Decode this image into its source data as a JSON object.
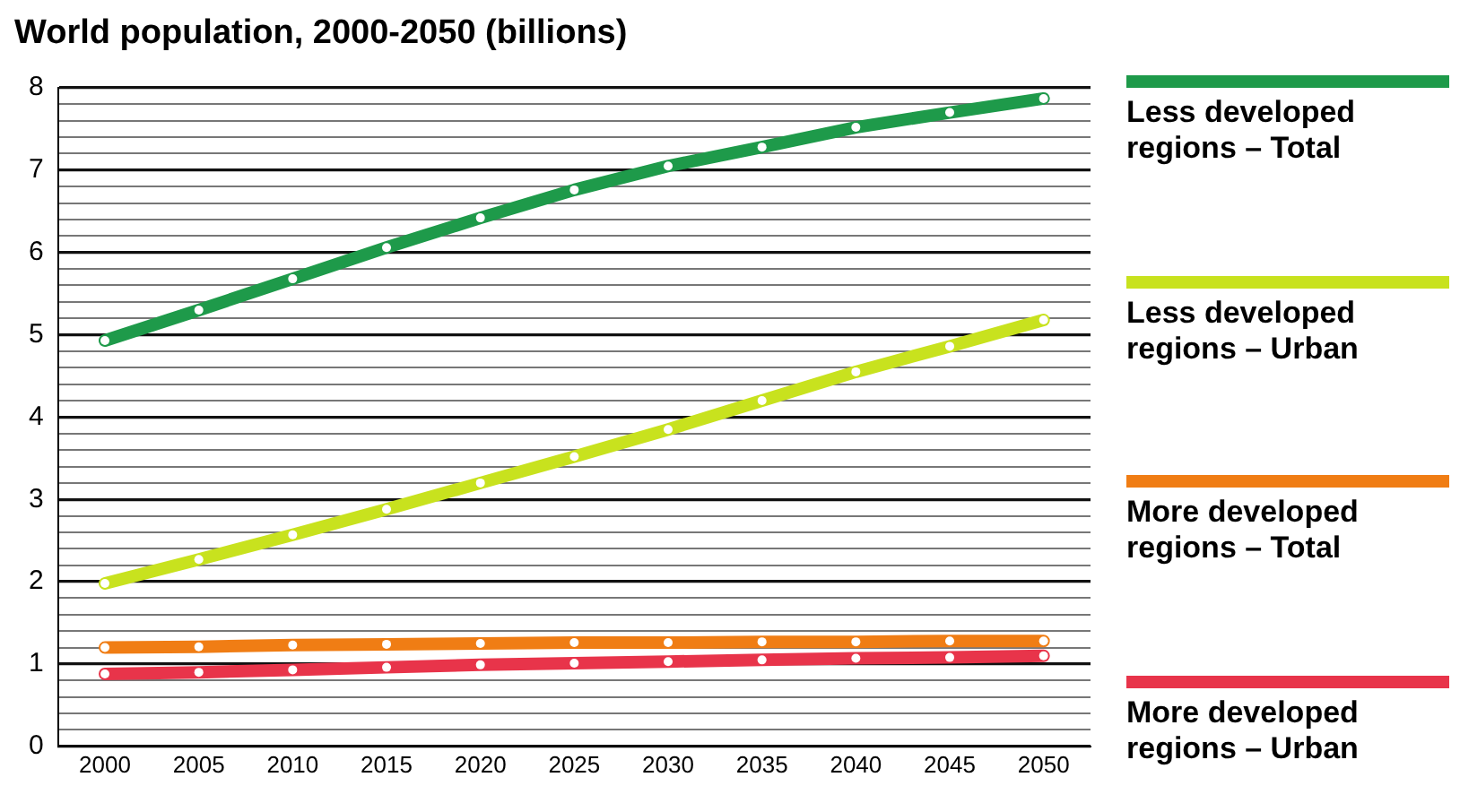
{
  "chart_data": {
    "type": "line",
    "title": "World population, 2000-2050 (billions)",
    "categories": [
      "2000",
      "2005",
      "2010",
      "2015",
      "2020",
      "2025",
      "2030",
      "2035",
      "2040",
      "2045",
      "2050"
    ],
    "series": [
      {
        "name": "Less developed regions – Total",
        "color": "#1e9a4a",
        "values": [
          4.93,
          5.3,
          5.68,
          6.06,
          6.42,
          6.76,
          7.05,
          7.28,
          7.52,
          7.7,
          7.87
        ]
      },
      {
        "name": "Less developed regions – Urban",
        "color": "#c8e21e",
        "values": [
          1.98,
          2.27,
          2.57,
          2.88,
          3.2,
          3.52,
          3.85,
          4.2,
          4.55,
          4.86,
          5.18
        ]
      },
      {
        "name": "More developed regions – Total",
        "color": "#f07d14",
        "values": [
          1.2,
          1.21,
          1.23,
          1.24,
          1.25,
          1.26,
          1.26,
          1.27,
          1.27,
          1.28,
          1.28
        ]
      },
      {
        "name": "More developed regions – Urban",
        "color": "#e8344a",
        "values": [
          0.88,
          0.9,
          0.93,
          0.96,
          0.99,
          1.01,
          1.03,
          1.05,
          1.07,
          1.08,
          1.1
        ]
      }
    ],
    "ylim": [
      0,
      8
    ],
    "yticks": [
      0,
      {
        "value": 0.2,
        "label": null
      },
      {
        "value": 0.4,
        "label": null
      },
      {
        "value": 0.6,
        "label": null
      },
      {
        "value": 0.8,
        "label": null
      },
      1,
      {
        "value": 1.2,
        "label": null
      },
      {
        "value": 1.4,
        "label": null
      },
      {
        "value": 1.6,
        "label": null
      },
      {
        "value": 1.8,
        "label": null
      },
      2,
      {
        "value": 2.2,
        "label": null
      },
      {
        "value": 2.4,
        "label": null
      },
      {
        "value": 2.6,
        "label": null
      },
      {
        "value": 2.8,
        "label": null
      },
      3,
      {
        "value": 3.2,
        "label": null
      },
      {
        "value": 3.4,
        "label": null
      },
      {
        "value": 3.6,
        "label": null
      },
      {
        "value": 3.8,
        "label": null
      },
      4,
      {
        "value": 4.2,
        "label": null
      },
      {
        "value": 4.4,
        "label": null
      },
      {
        "value": 4.6,
        "label": null
      },
      {
        "value": 4.8,
        "label": null
      },
      5,
      {
        "value": 5.2,
        "label": null
      },
      {
        "value": 5.4,
        "label": null
      },
      {
        "value": 5.6,
        "label": null
      },
      {
        "value": 5.8,
        "label": null
      },
      6,
      {
        "value": 6.2,
        "label": null
      },
      {
        "value": 6.4,
        "label": null
      },
      {
        "value": 6.6,
        "label": null
      },
      {
        "value": 6.8,
        "label": null
      },
      7,
      {
        "value": 7.2,
        "label": null
      },
      {
        "value": 7.4,
        "label": null
      },
      {
        "value": 7.6,
        "label": null
      },
      {
        "value": 7.8,
        "label": null
      },
      8
    ],
    "grid": "y",
    "legend": "right",
    "marker": "circle",
    "line_style": "solid"
  }
}
